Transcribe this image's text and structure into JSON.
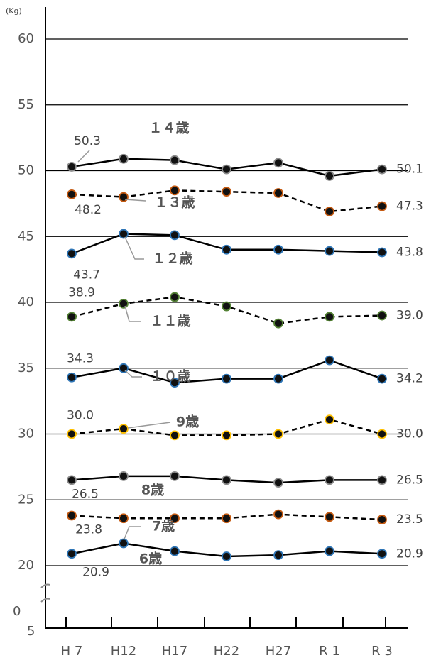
{
  "chart_data": {
    "type": "line",
    "y_label": "(Kg)",
    "break_labels": [
      "0",
      "5"
    ],
    "categories": [
      "H 7",
      "H12",
      "H17",
      "H22",
      "H27",
      "R 1",
      "R 3"
    ],
    "ylim": [
      20,
      60
    ],
    "yticks": [
      20,
      25,
      30,
      35,
      40,
      45,
      50,
      55,
      60
    ],
    "grid": true,
    "series": [
      {
        "name": "１４歳",
        "color": "#8c8c8c",
        "dash": false,
        "values": [
          50.3,
          50.9,
          50.8,
          50.1,
          50.6,
          49.6,
          50.1
        ],
        "value_labels": [
          "50.3",
          null,
          null,
          null,
          null,
          null,
          "50.1"
        ]
      },
      {
        "name": "１３歳",
        "color": "#c55a11",
        "dash": true,
        "values": [
          48.2,
          48.0,
          48.5,
          48.4,
          48.3,
          46.9,
          47.3
        ],
        "value_labels": [
          "48.2",
          null,
          null,
          null,
          null,
          null,
          "47.3"
        ]
      },
      {
        "name": "１２歳",
        "color": "#2e75b6",
        "dash": false,
        "values": [
          43.7,
          45.2,
          45.1,
          44.0,
          44.0,
          43.9,
          43.8
        ],
        "value_labels": [
          "43.7",
          null,
          null,
          null,
          null,
          null,
          "43.8"
        ]
      },
      {
        "name": "１１歳",
        "color": "#548235",
        "dash": true,
        "values": [
          38.9,
          39.9,
          40.4,
          39.7,
          38.4,
          38.9,
          39.0
        ],
        "value_labels": [
          "38.9",
          null,
          null,
          null,
          null,
          null,
          "39.0"
        ]
      },
      {
        "name": "１０歳",
        "color": "#2e75b6",
        "dash": false,
        "values": [
          34.3,
          35.0,
          33.9,
          34.2,
          34.2,
          35.6,
          34.2
        ],
        "value_labels": [
          "34.3",
          null,
          null,
          null,
          null,
          null,
          "34.2"
        ]
      },
      {
        "name": "9歳",
        "color": "#ffc000",
        "dash": true,
        "values": [
          30.0,
          30.4,
          29.9,
          29.9,
          30.0,
          31.1,
          30.0
        ],
        "value_labels": [
          "30.0",
          null,
          null,
          null,
          null,
          null,
          "30.0"
        ]
      },
      {
        "name": "8歳",
        "color": "#8c8c8c",
        "dash": false,
        "values": [
          26.5,
          26.8,
          26.8,
          26.5,
          26.3,
          26.5,
          26.5
        ],
        "value_labels": [
          "26.5",
          null,
          null,
          null,
          null,
          null,
          "26.5"
        ]
      },
      {
        "name": "7歳",
        "color": "#c55a11",
        "dash": true,
        "values": [
          23.8,
          23.6,
          23.6,
          23.6,
          23.9,
          23.7,
          23.5
        ],
        "value_labels": [
          "23.8",
          null,
          null,
          null,
          null,
          null,
          "23.5"
        ]
      },
      {
        "name": "6歳",
        "color": "#2e75b6",
        "dash": false,
        "values": [
          20.9,
          21.7,
          21.1,
          20.7,
          20.8,
          21.1,
          20.9
        ],
        "value_labels": [
          "20.9",
          null,
          null,
          null,
          null,
          null,
          "20.9"
        ]
      }
    ]
  }
}
